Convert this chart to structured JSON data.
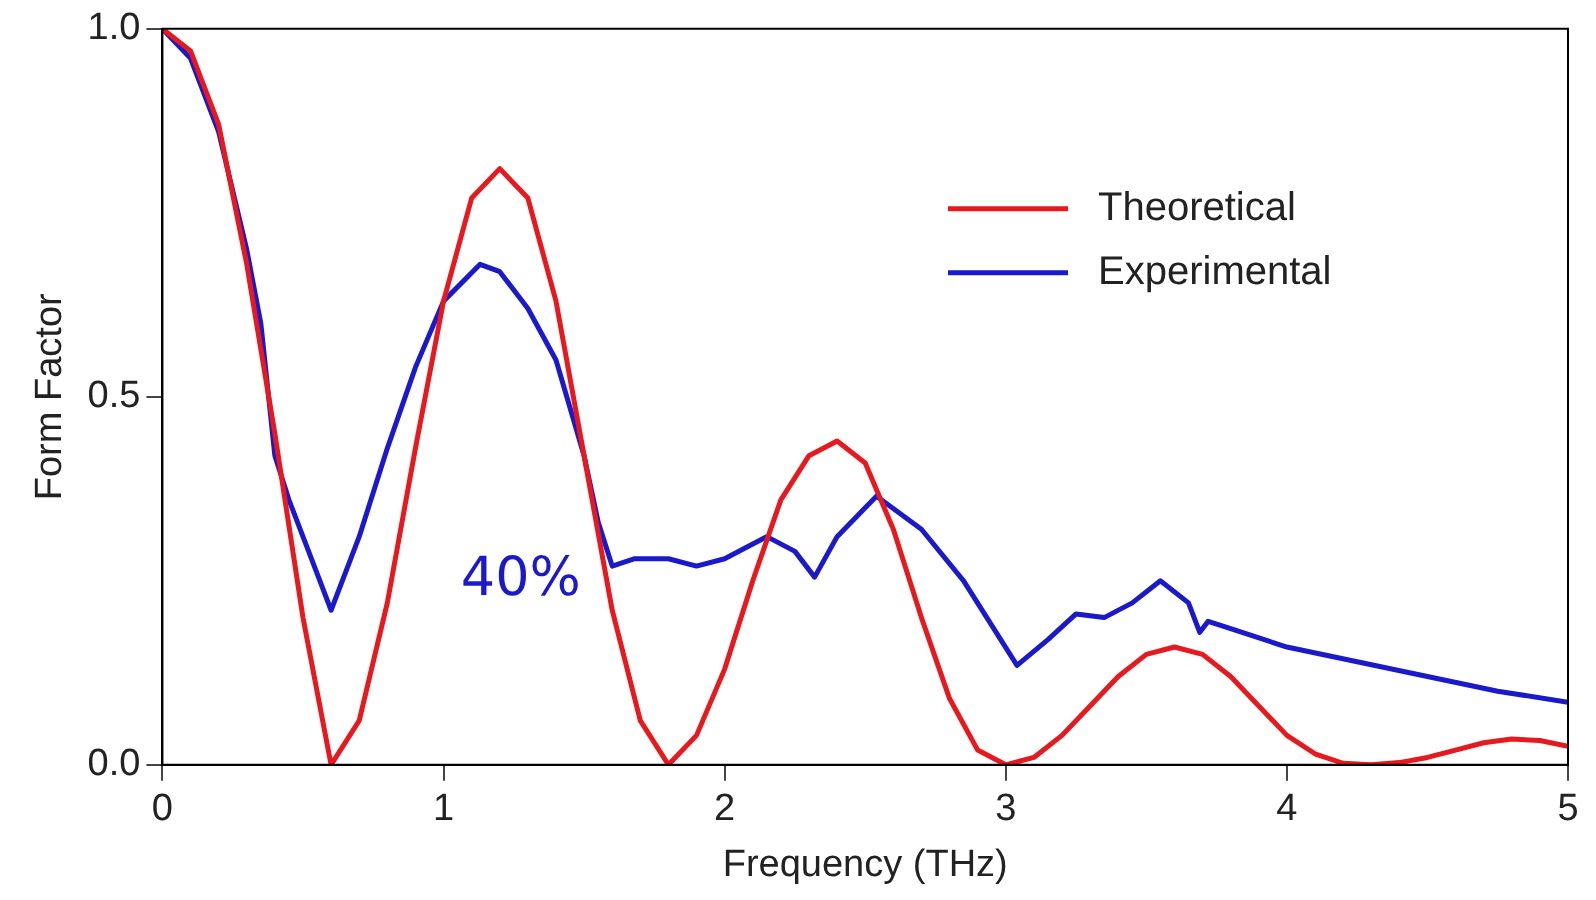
{
  "chart_data": {
    "type": "line",
    "xlabel": "Frequency (THz)",
    "ylabel": "Form Factor",
    "xlim": [
      0,
      5
    ],
    "xticks": [
      0,
      1,
      2,
      3,
      4,
      5
    ],
    "ylim": [
      0,
      1
    ],
    "yticks": [
      {
        "value": 0,
        "label": "0.0"
      },
      {
        "value": 0.5,
        "label": "0.5"
      },
      {
        "value": 1,
        "label": "1.0"
      }
    ],
    "grid": false,
    "legend": "top right",
    "marker": "none",
    "line_style": "solid",
    "annotations": [
      "40%"
    ],
    "series": [
      {
        "name": "Theoretical",
        "color": "#e8191e",
        "x": [
          0,
          0.1,
          0.2,
          0.3,
          0.4,
          0.5,
          0.6,
          0.7,
          0.8,
          0.9,
          1.0,
          1.1,
          1.2,
          1.3,
          1.4,
          1.5,
          1.6,
          1.7,
          1.8,
          1.9,
          2.0,
          2.1,
          2.2,
          2.3,
          2.4,
          2.5,
          2.6,
          2.7,
          2.8,
          2.9,
          3.0,
          3.1,
          3.2,
          3.3,
          3.4,
          3.5,
          3.6,
          3.7,
          3.8,
          3.9,
          4.0,
          4.1,
          4.2,
          4.3,
          4.4,
          4.5,
          4.6,
          4.7,
          4.8,
          4.9,
          5.0
        ],
        "values": [
          1.0,
          0.97,
          0.87,
          0.68,
          0.45,
          0.2,
          0.0,
          0.06,
          0.22,
          0.43,
          0.63,
          0.77,
          0.81,
          0.77,
          0.63,
          0.42,
          0.21,
          0.06,
          0.0,
          0.04,
          0.13,
          0.25,
          0.36,
          0.42,
          0.44,
          0.41,
          0.32,
          0.2,
          0.09,
          0.02,
          0.0,
          0.01,
          0.04,
          0.08,
          0.12,
          0.15,
          0.16,
          0.15,
          0.12,
          0.08,
          0.04,
          0.015,
          0.002,
          0.0,
          0.003,
          0.01,
          0.02,
          0.03,
          0.035,
          0.033,
          0.025
        ]
      },
      {
        "name": "Experimental",
        "color": "#1a1acc",
        "x": [
          0,
          0.1,
          0.2,
          0.3,
          0.35,
          0.4,
          0.45,
          0.5,
          0.55,
          0.6,
          0.7,
          0.8,
          0.9,
          1.0,
          1.13,
          1.2,
          1.3,
          1.4,
          1.5,
          1.55,
          1.6,
          1.68,
          1.8,
          1.9,
          2.0,
          2.15,
          2.25,
          2.32,
          2.4,
          2.54,
          2.7,
          2.85,
          3.04,
          3.15,
          3.25,
          3.35,
          3.45,
          3.55,
          3.65,
          3.69,
          3.72,
          3.8,
          4.0,
          4.25,
          4.5,
          4.75,
          5.0
        ],
        "values": [
          1.0,
          0.96,
          0.86,
          0.7,
          0.6,
          0.42,
          0.36,
          0.31,
          0.26,
          0.21,
          0.31,
          0.43,
          0.54,
          0.63,
          0.68,
          0.67,
          0.62,
          0.55,
          0.42,
          0.33,
          0.27,
          0.28,
          0.28,
          0.27,
          0.28,
          0.31,
          0.29,
          0.255,
          0.31,
          0.365,
          0.32,
          0.25,
          0.135,
          0.17,
          0.205,
          0.2,
          0.22,
          0.25,
          0.22,
          0.18,
          0.195,
          0.185,
          0.16,
          0.14,
          0.12,
          0.1,
          0.085
        ]
      }
    ]
  }
}
